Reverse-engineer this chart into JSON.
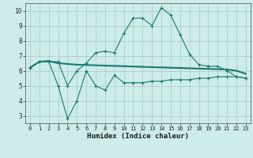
{
  "x": [
    0,
    1,
    2,
    3,
    4,
    5,
    6,
    7,
    8,
    9,
    10,
    11,
    12,
    13,
    14,
    15,
    16,
    17,
    18,
    19,
    20,
    21,
    22,
    23
  ],
  "line_top": [
    6.2,
    6.6,
    6.6,
    6.6,
    5.0,
    6.0,
    6.5,
    7.2,
    7.3,
    7.2,
    8.5,
    9.5,
    9.5,
    9.0,
    10.2,
    9.7,
    8.4,
    7.1,
    6.4,
    6.3,
    6.3,
    6.0,
    5.6,
    5.5
  ],
  "line_mid": [
    6.2,
    6.6,
    6.65,
    6.5,
    6.45,
    6.4,
    6.38,
    6.36,
    6.34,
    6.32,
    6.3,
    6.28,
    6.26,
    6.24,
    6.22,
    6.2,
    6.18,
    6.16,
    6.14,
    6.12,
    6.1,
    6.08,
    6.0,
    5.8
  ],
  "line_bot": [
    6.2,
    6.6,
    6.6,
    5.0,
    2.8,
    4.0,
    6.0,
    5.0,
    4.7,
    5.7,
    5.2,
    5.2,
    5.2,
    5.3,
    5.3,
    5.4,
    5.4,
    5.4,
    5.5,
    5.5,
    5.6,
    5.6,
    5.6,
    5.5
  ],
  "line_color": "#1a7a6e",
  "bg_color": "#cdecea",
  "grid_color": "#aacfcc",
  "xlabel": "Humidex (Indice chaleur)",
  "ylim": [
    2.5,
    10.5
  ],
  "xlim": [
    -0.5,
    23.5
  ],
  "yticks": [
    3,
    4,
    5,
    6,
    7,
    8,
    9,
    10
  ],
  "xticks": [
    0,
    1,
    2,
    3,
    4,
    5,
    6,
    7,
    8,
    9,
    10,
    11,
    12,
    13,
    14,
    15,
    16,
    17,
    18,
    19,
    20,
    21,
    22,
    23
  ],
  "tick_fontsize": 5.0,
  "xlabel_fontsize": 6.5
}
